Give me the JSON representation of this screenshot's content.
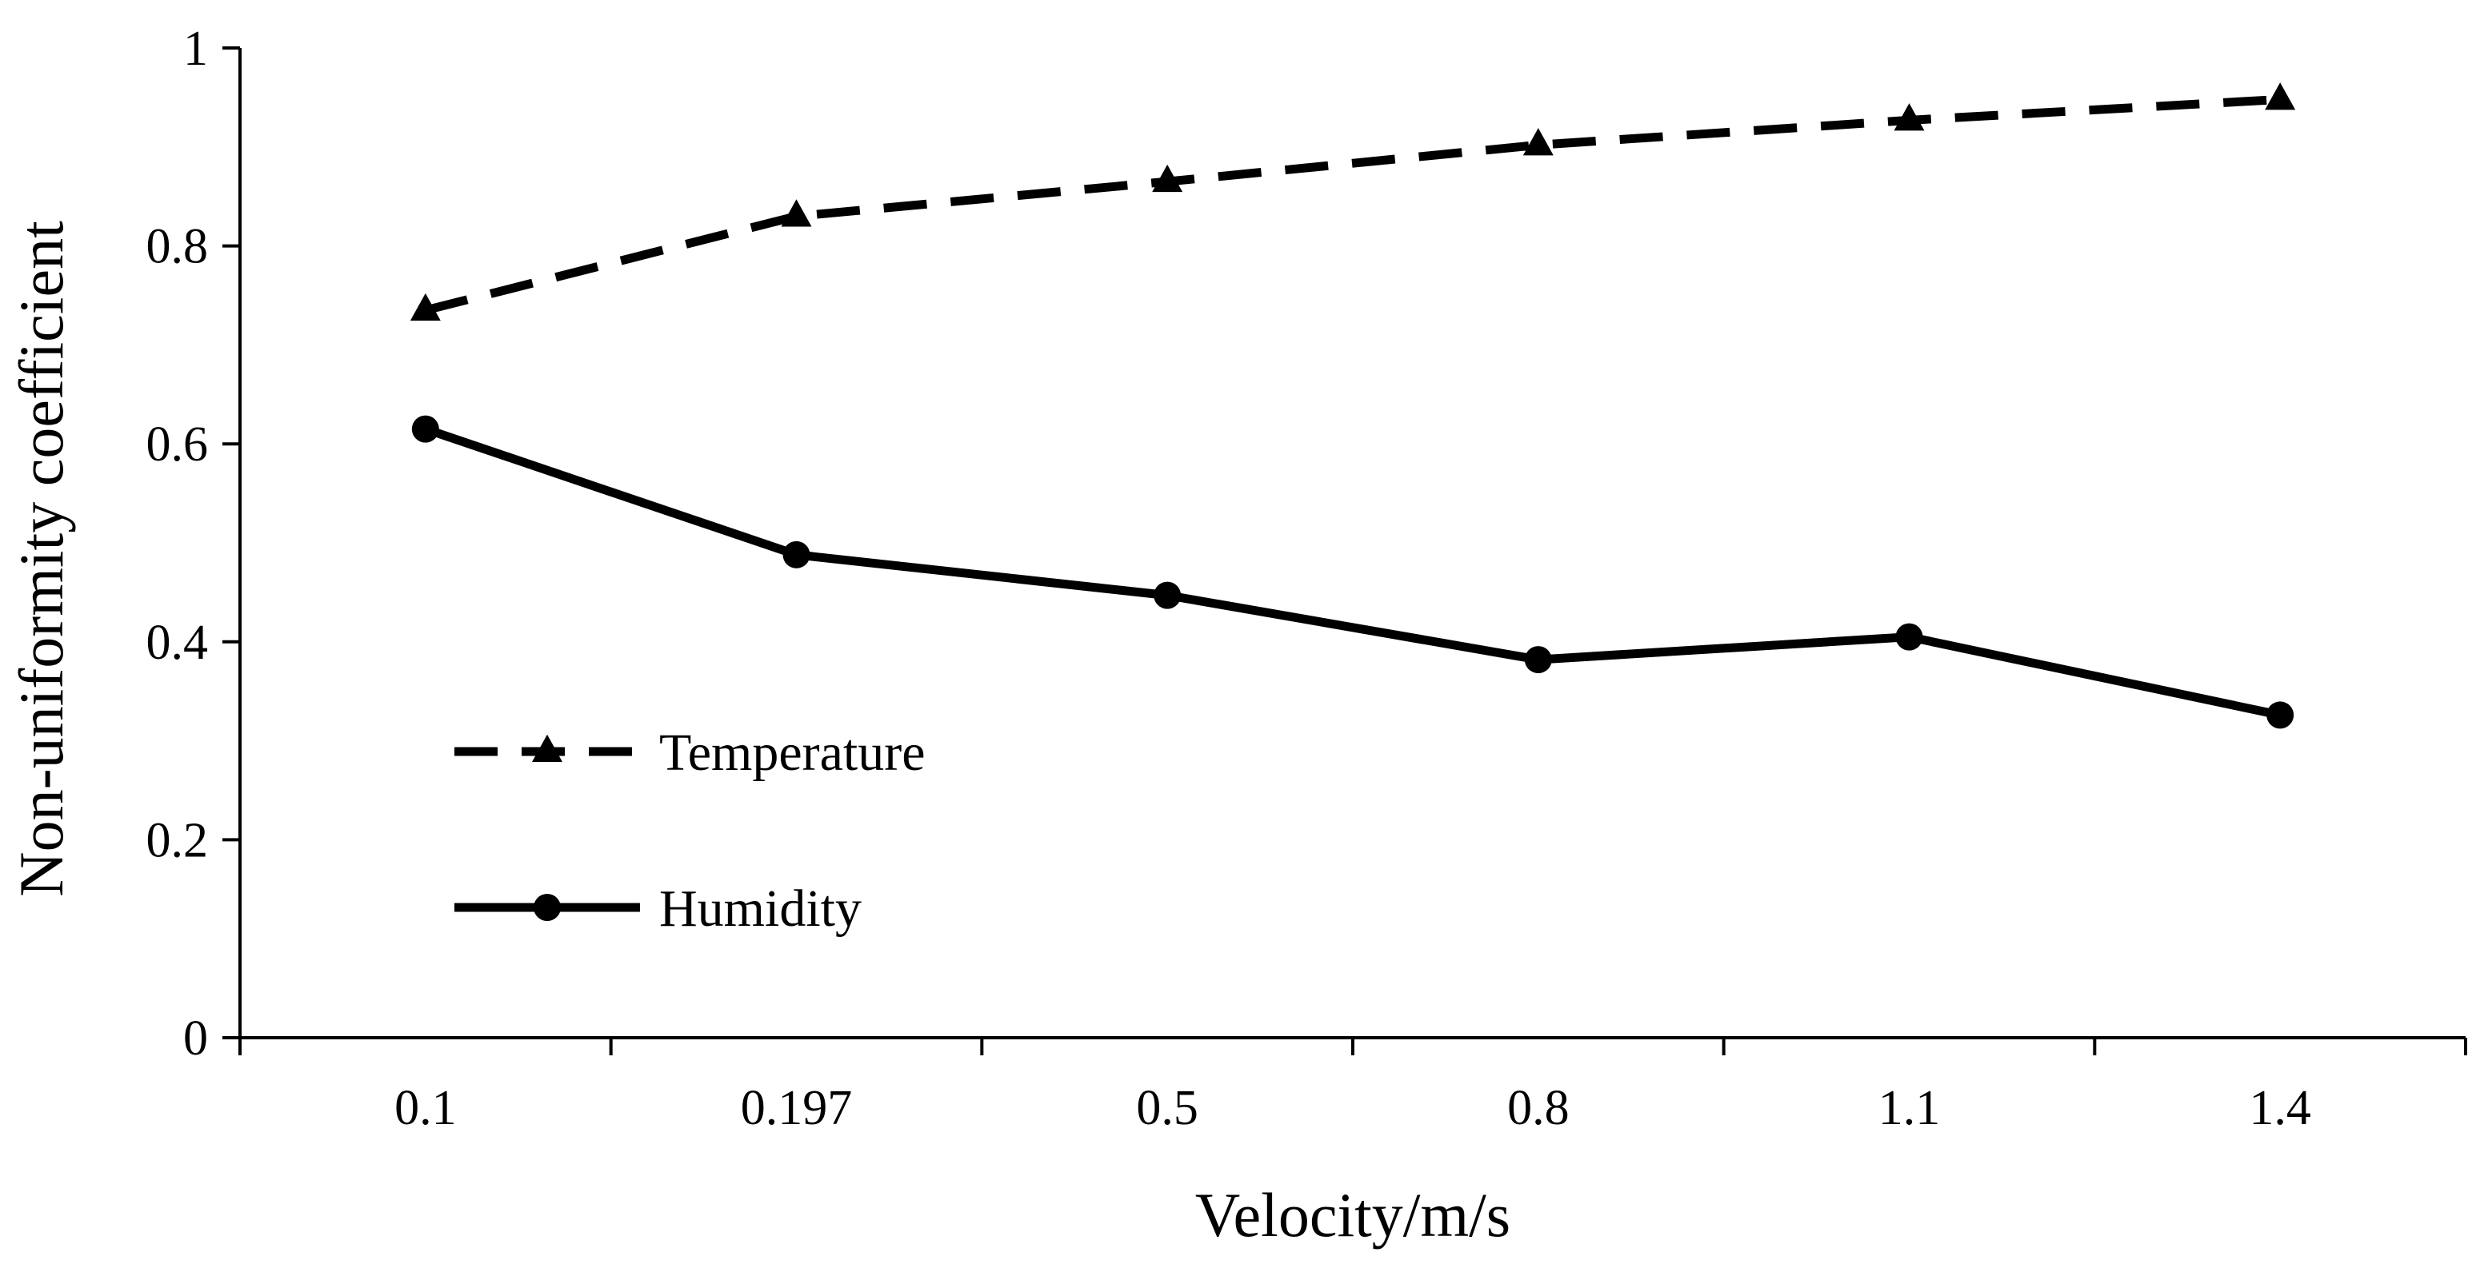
{
  "chart_data": {
    "type": "line",
    "title": "",
    "xlabel": "Velocity/m/s",
    "ylabel": "Non-uniformity coefficient",
    "categories": [
      "0.1",
      "0.197",
      "0.5",
      "0.8",
      "1.1",
      "1.4"
    ],
    "ylim": [
      0,
      1
    ],
    "yticks": [
      "0",
      "0.2",
      "0.4",
      "0.6",
      "0.8",
      "1"
    ],
    "grid": false,
    "legend_position": "lower-left",
    "series": [
      {
        "name": "Temperature",
        "line_style": "dashed",
        "marker": "triangle",
        "values": [
          0.735,
          0.83,
          0.865,
          0.902,
          0.927,
          0.948
        ]
      },
      {
        "name": "Humidity",
        "line_style": "solid",
        "marker": "circle",
        "values": [
          0.615,
          0.488,
          0.447,
          0.382,
          0.405,
          0.326
        ]
      }
    ]
  }
}
